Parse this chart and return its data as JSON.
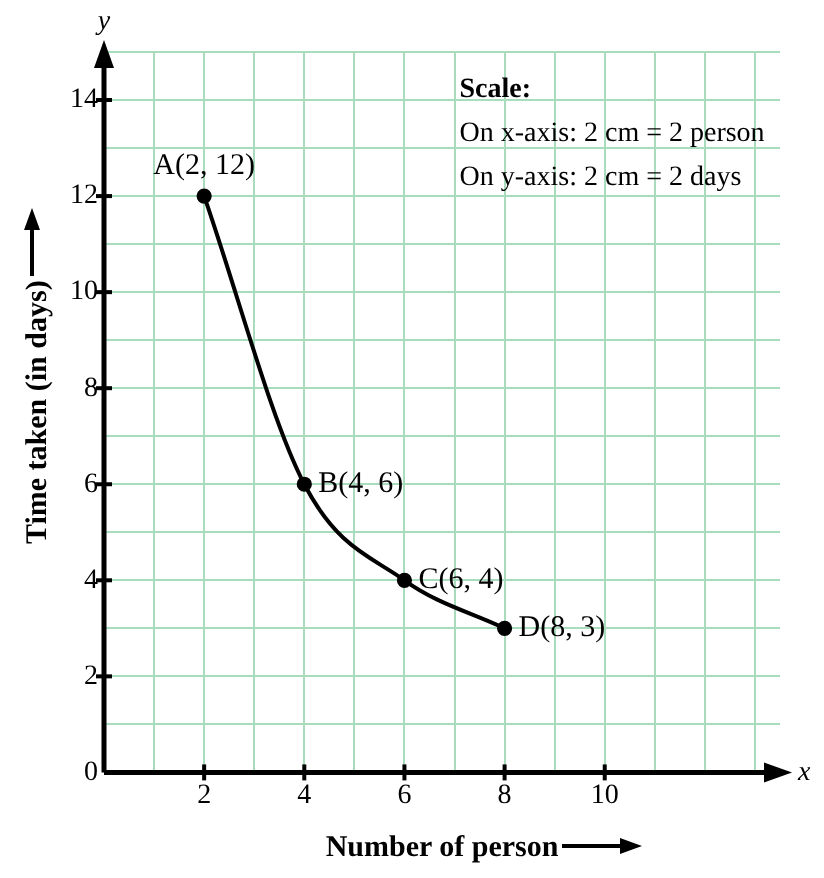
{
  "chart_data": {
    "type": "line",
    "xlabel": "Number of person",
    "ylabel": "Time taken (in days)",
    "x": [
      2,
      4,
      6,
      8
    ],
    "values": [
      12,
      6,
      4,
      3
    ],
    "color": "#000000",
    "marker": "circle",
    "line_style": "solid",
    "xlim": [
      0,
      13.5
    ],
    "ylim": [
      0,
      15
    ],
    "xticks": [
      {
        "value": 0,
        "label": null
      },
      {
        "value": 1,
        "label": null
      },
      2,
      {
        "value": 3,
        "label": null
      },
      4,
      {
        "value": 5,
        "label": null
      },
      6,
      {
        "value": 7,
        "label": null
      },
      8,
      {
        "value": 9,
        "label": null
      },
      10,
      {
        "value": 11,
        "label": null
      },
      {
        "value": 12,
        "label": null
      },
      {
        "value": 13,
        "label": null
      }
    ],
    "yticks": [
      0,
      {
        "value": 1,
        "label": null
      },
      2,
      {
        "value": 3,
        "label": null
      },
      4,
      {
        "value": 5,
        "label": null
      },
      6,
      {
        "value": 7,
        "label": null
      },
      8,
      {
        "value": 9,
        "label": null
      },
      10,
      {
        "value": 11,
        "label": null
      },
      12,
      {
        "value": 13,
        "label": null
      },
      14,
      {
        "value": 15,
        "label": null
      }
    ],
    "grid": true,
    "annotations": [
      "y",
      "x",
      "Scale:",
      "On x-axis: 2 cm = 2 person",
      "On y-axis: 2 cm = 2 days",
      {
        "text": "A(2, 12)",
        "x": 2,
        "y": 12
      },
      {
        "text": "B(4, 6)",
        "x": 4,
        "y": 6
      },
      {
        "text": "C(6, 4)",
        "x": 6,
        "y": 4
      },
      {
        "text": "D(8, 3)",
        "x": 8,
        "y": 3
      }
    ]
  }
}
